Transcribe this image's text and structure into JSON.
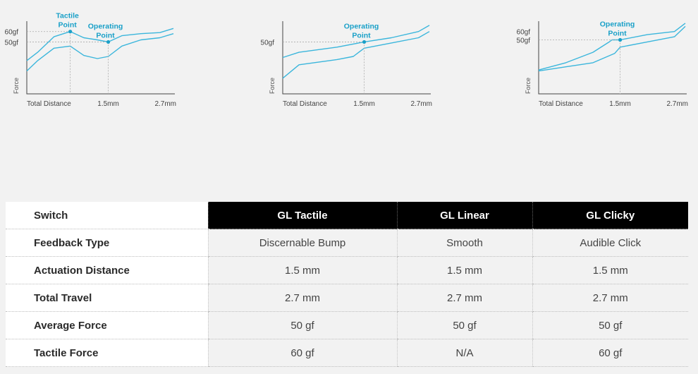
{
  "colors": {
    "curve": "#3bb6dc",
    "annotation": "#1aa0c8",
    "axis": "#444444",
    "guide": "#aaaaaa"
  },
  "chart_data": [
    {
      "type": "line",
      "series": [
        {
          "x": [
            0,
            0.2,
            0.5,
            0.8,
            1.05,
            1.3,
            1.5,
            1.75,
            2.1,
            2.45,
            2.7
          ],
          "y": [
            32,
            40,
            55,
            60,
            54,
            52,
            50,
            56,
            58,
            59,
            63
          ]
        },
        {
          "x": [
            0,
            0.2,
            0.5,
            0.8,
            1.05,
            1.3,
            1.5,
            1.75,
            2.1,
            2.45,
            2.7
          ],
          "y": [
            22,
            32,
            44,
            46,
            37,
            34,
            36,
            46,
            52,
            54,
            58
          ]
        }
      ],
      "ylabel": "Force",
      "xlabel": "Total Distance",
      "x_ticks": [
        "1.5mm",
        "2.7mm"
      ],
      "y_ticks": [
        "60gf",
        "50gf"
      ],
      "annotations": [
        {
          "label": [
            "Tactile",
            "Point"
          ],
          "x": 0.8,
          "y": 60
        },
        {
          "label": [
            "Operating",
            "Point"
          ],
          "x": 1.5,
          "y": 50
        }
      ],
      "xlim": [
        0,
        2.7
      ],
      "ylim": [
        0,
        70
      ]
    },
    {
      "type": "line",
      "series": [
        {
          "x": [
            0,
            0.3,
            1.0,
            1.5,
            2.0,
            2.5,
            2.7
          ],
          "y": [
            35,
            40,
            45,
            50,
            54,
            60,
            66
          ]
        },
        {
          "x": [
            0,
            0.3,
            1.0,
            1.3,
            1.4,
            1.5,
            2.0,
            2.5,
            2.7
          ],
          "y": [
            15,
            28,
            33,
            36,
            40,
            44,
            49,
            54,
            60
          ]
        }
      ],
      "ylabel": "Force",
      "xlabel": "Total Distance",
      "x_ticks": [
        "1.5mm",
        "2.7mm"
      ],
      "y_ticks": [
        "50gf"
      ],
      "annotations": [
        {
          "label": [
            "Operating",
            "Point"
          ],
          "x": 1.5,
          "y": 50
        }
      ],
      "xlim": [
        0,
        2.7
      ],
      "ylim": [
        0,
        70
      ]
    },
    {
      "type": "line",
      "series": [
        {
          "x": [
            0,
            0.5,
            1.0,
            1.3,
            1.35,
            1.5,
            2.0,
            2.5,
            2.7
          ],
          "y": [
            23,
            30,
            40,
            50,
            52,
            52,
            57,
            60,
            68
          ]
        },
        {
          "x": [
            0,
            0.5,
            1.0,
            1.4,
            1.5,
            2.0,
            2.5,
            2.7
          ],
          "y": [
            22,
            26,
            30,
            39,
            45,
            50,
            55,
            65
          ]
        }
      ],
      "ylabel": "Force",
      "xlabel": "Total Distance",
      "x_ticks": [
        "1.5mm",
        "2.7mm"
      ],
      "y_ticks": [
        "60gf",
        "50gf"
      ],
      "annotations": [
        {
          "label": [
            "Operating",
            "Point"
          ],
          "x": 1.5,
          "y": 52
        }
      ],
      "xlim": [
        0,
        2.7
      ],
      "ylim": [
        0,
        70
      ]
    }
  ],
  "table": {
    "header_label": "Switch",
    "columns": [
      "GL Tactile",
      "GL Linear",
      "GL Clicky"
    ],
    "rows": [
      {
        "label": "Feedback Type",
        "values": [
          "Discernable Bump",
          "Smooth",
          "Audible Click"
        ]
      },
      {
        "label": "Actuation Distance",
        "values": [
          "1.5 mm",
          "1.5 mm",
          "1.5 mm"
        ]
      },
      {
        "label": "Total Travel",
        "values": [
          "2.7 mm",
          "2.7 mm",
          "2.7 mm"
        ]
      },
      {
        "label": "Average Force",
        "values": [
          "50 gf",
          "50 gf",
          "50 gf"
        ]
      },
      {
        "label": "Tactile Force",
        "values": [
          "60 gf",
          "N/A",
          "60 gf"
        ]
      }
    ]
  }
}
